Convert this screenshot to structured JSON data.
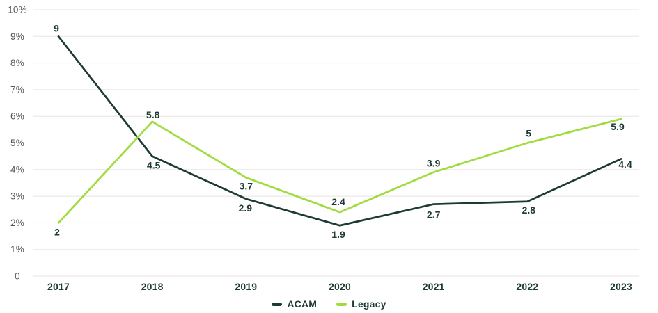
{
  "colors": {
    "acam": "#1e3a35",
    "legacy": "#a0dc40",
    "gridline": "#e7e5e2",
    "ytick_text": "#54595b",
    "label_text": "#1e3a35",
    "background": "#ffffff"
  },
  "chart_data": {
    "type": "line",
    "title": "",
    "xlabel": "",
    "ylabel": "",
    "x": [
      "2017",
      "2018",
      "2019",
      "2020",
      "2021",
      "2022",
      "2023"
    ],
    "series": [
      {
        "name": "ACAM",
        "color": "#1e3a35",
        "values": [
          9,
          4.5,
          2.9,
          1.9,
          2.7,
          2.8,
          4.4
        ],
        "labels": [
          "9",
          "4.5",
          "2.9",
          "1.9",
          "2.7",
          "2.8",
          "4.4"
        ],
        "label_offsets": [
          [
            -3,
            -12
          ],
          [
            2,
            13
          ],
          [
            -1,
            13
          ],
          [
            -2,
            13
          ],
          [
            0,
            15
          ],
          [
            2,
            12
          ],
          [
            6,
            8
          ]
        ]
      },
      {
        "name": "Legacy",
        "color": "#a0dc40",
        "values": [
          2,
          5.8,
          3.7,
          2.4,
          3.9,
          5,
          5.9
        ],
        "labels": [
          "2",
          "5.8",
          "3.7",
          "2.4",
          "3.9",
          "5",
          "5.9"
        ],
        "label_offsets": [
          [
            -2,
            13
          ],
          [
            1,
            -10
          ],
          [
            0,
            12
          ],
          [
            -2,
            -15
          ],
          [
            0,
            -13
          ],
          [
            2,
            -14
          ],
          [
            -5,
            11
          ]
        ]
      }
    ],
    "yticks": [
      {
        "value": 0,
        "label": "0"
      },
      {
        "value": 1,
        "label": "1%"
      },
      {
        "value": 2,
        "label": "2%"
      },
      {
        "value": 3,
        "label": "3%"
      },
      {
        "value": 4,
        "label": "4%"
      },
      {
        "value": 5,
        "label": "5%"
      },
      {
        "value": 6,
        "label": "6%"
      },
      {
        "value": 7,
        "label": "7%"
      },
      {
        "value": 8,
        "label": "8%"
      },
      {
        "value": 9,
        "label": "9%"
      },
      {
        "value": 10,
        "label": "10%"
      }
    ],
    "ylim": [
      0,
      10
    ],
    "grid": "horizontal",
    "legend_position": "bottom-center"
  },
  "legend": {
    "items": [
      {
        "label": "ACAM",
        "color": "#1e3a35"
      },
      {
        "label": "Legacy",
        "color": "#a0dc40"
      }
    ]
  }
}
